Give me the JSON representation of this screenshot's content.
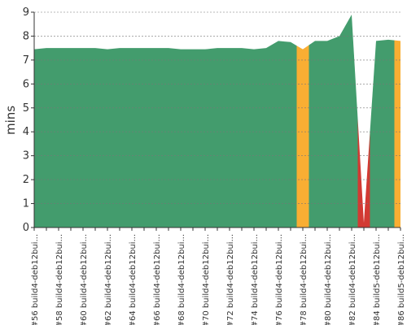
{
  "chart_data": {
    "type": "area",
    "y_label": "mins",
    "categories": [
      "#56 build4-deb12bui...",
      null,
      "#58 build4-deb12bui...",
      null,
      "#60 build4-deb12bui...",
      null,
      "#62 build4-deb12bui...",
      null,
      "#64 build4-deb12bui...",
      null,
      "#66 build4-deb12bui...",
      null,
      "#68 build4-deb12bui...",
      null,
      "#70 build4-deb12bui...",
      null,
      "#72 build4-deb12bui...",
      null,
      "#74 build4-deb12bui...",
      null,
      "#76 build4-deb12bui...",
      null,
      "#78 build4-deb12bui...",
      null,
      "#80 build4-deb12bui...",
      null,
      "#82 build4-deb12bui...",
      null,
      "#84 build5-deb12bui...",
      null,
      "#86 build5-deb12bui..."
    ],
    "values": [
      7.45,
      7.5,
      7.5,
      7.5,
      7.5,
      7.5,
      7.45,
      7.5,
      7.5,
      7.5,
      7.5,
      7.5,
      7.45,
      7.45,
      7.45,
      7.5,
      7.5,
      7.5,
      7.45,
      7.5,
      7.8,
      7.75,
      7.45,
      7.8,
      7.8,
      8.0,
      8.9,
      0.2,
      7.8,
      7.85,
      7.8
    ],
    "colors": [
      "#439c6d",
      "#439c6d",
      "#439c6d",
      "#439c6d",
      "#439c6d",
      "#439c6d",
      "#439c6d",
      "#439c6d",
      "#439c6d",
      "#439c6d",
      "#439c6d",
      "#439c6d",
      "#439c6d",
      "#439c6d",
      "#439c6d",
      "#439c6d",
      "#439c6d",
      "#439c6d",
      "#439c6d",
      "#439c6d",
      "#439c6d",
      "#439c6d",
      "#f9ae33",
      "#439c6d",
      "#439c6d",
      "#439c6d",
      "#439c6d",
      "#d23a33",
      "#439c6d",
      "#439c6d",
      "#f9ae33"
    ],
    "ylim": [
      0,
      9
    ],
    "yticks": [
      0,
      1,
      2,
      3,
      4,
      5,
      6,
      7,
      8,
      9
    ],
    "grid": true
  }
}
